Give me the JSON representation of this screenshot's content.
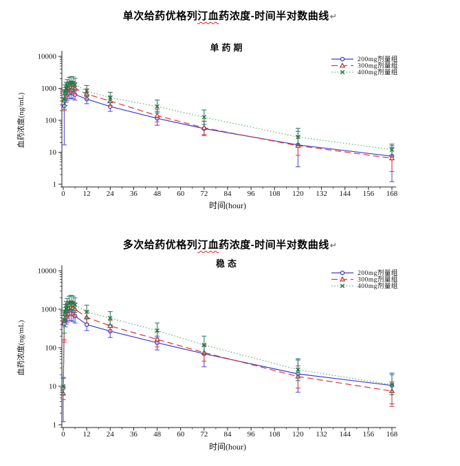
{
  "titles": [
    {
      "prefix": "单次给药优格列",
      "marked": "汀血",
      "suffix": "药浓度-时间半对数曲线",
      "return_mark": "↵"
    },
    {
      "prefix": "多次给药优格列",
      "marked": "汀血",
      "suffix": "药浓度-时间半对数曲线",
      "return_mark": "↵"
    }
  ],
  "chart_data": [
    {
      "type": "line",
      "title": "单药期",
      "xlabel": "时间(hour)",
      "ylabel": "血药浓度(ng/mL)",
      "y_scale": "log",
      "ylim": [
        1,
        10000
      ],
      "y_ticks": [
        1,
        10,
        100,
        1000,
        10000
      ],
      "xlim": [
        0,
        168
      ],
      "x_ticks": [
        0,
        12,
        24,
        36,
        48,
        60,
        72,
        84,
        96,
        108,
        120,
        132,
        144,
        156,
        168
      ],
      "x_minor_step": 6,
      "grid": false,
      "legend_position": "top-right",
      "series": [
        {
          "name": "200mg剂量组",
          "color": "#3a3acc",
          "marker_color": "#3a3acc",
          "err_color": "#5252d8",
          "line": "solid",
          "marker": "circle",
          "x": [
            0.5,
            1,
            1.5,
            2,
            3,
            4,
            5,
            6,
            12,
            24,
            48,
            72,
            120,
            168
          ],
          "y": [
            280,
            470,
            570,
            640,
            700,
            730,
            700,
            640,
            460,
            270,
            115,
            55,
            17,
            7.5
          ],
          "err_lo": [
            17,
            290,
            370,
            420,
            470,
            490,
            470,
            430,
            330,
            190,
            70,
            33,
            3.5,
            1.2
          ],
          "err_hi": [
            820,
            760,
            880,
            950,
            1020,
            1060,
            1020,
            950,
            640,
            380,
            190,
            92,
            45,
            16
          ]
        },
        {
          "name": "300mg剂量组",
          "color": "#dd3333",
          "marker_color": "#cc2222",
          "err_color": "#dd4444",
          "line": "dash",
          "marker": "triangle",
          "x": [
            0.5,
            1,
            1.5,
            2,
            3,
            4,
            5,
            6,
            12,
            24,
            48,
            72,
            120,
            168
          ],
          "y": [
            420,
            700,
            850,
            950,
            1060,
            1120,
            1080,
            1000,
            660,
            400,
            140,
            58,
            16,
            6.5
          ],
          "err_lo": [
            200,
            460,
            560,
            620,
            690,
            730,
            700,
            650,
            450,
            280,
            90,
            36,
            8,
            2.5
          ],
          "err_hi": [
            820,
            1060,
            1280,
            1430,
            1600,
            1690,
            1630,
            1510,
            960,
            570,
            220,
            94,
            32,
            14
          ]
        },
        {
          "name": "400mg剂量组",
          "color": "#5fae6e",
          "marker_color": "#1d7a40",
          "err_color": "#2c7d6a",
          "line": "dot",
          "marker": "x",
          "x": [
            0.5,
            1,
            1.5,
            2,
            3,
            4,
            5,
            6,
            12,
            24,
            48,
            72,
            120,
            168
          ],
          "y": [
            450,
            800,
            1000,
            1200,
            1400,
            1500,
            1450,
            1300,
            830,
            510,
            270,
            125,
            30,
            12
          ],
          "err_lo": [
            220,
            500,
            640,
            760,
            890,
            950,
            920,
            830,
            560,
            350,
            170,
            74,
            16,
            8
          ],
          "err_hi": [
            900,
            1270,
            1560,
            1880,
            2190,
            2350,
            2270,
            2040,
            1230,
            750,
            430,
            210,
            56,
            18
          ]
        }
      ]
    },
    {
      "type": "line",
      "title": "稳态",
      "xlabel": "时间(hour)",
      "ylabel": "血药浓度(ng/mL)",
      "y_scale": "log",
      "ylim": [
        1,
        10000
      ],
      "y_ticks": [
        1,
        10,
        100,
        1000,
        10000
      ],
      "xlim": [
        0,
        168
      ],
      "x_ticks": [
        0,
        12,
        24,
        36,
        48,
        60,
        72,
        84,
        96,
        108,
        120,
        132,
        144,
        156,
        168
      ],
      "x_minor_step": 6,
      "grid": false,
      "legend_position": "top-right",
      "series": [
        {
          "name": "200mg剂量组",
          "color": "#3a3acc",
          "marker_color": "#3a3acc",
          "err_color": "#5252d8",
          "line": "solid",
          "marker": "circle",
          "x": [
            0,
            0.5,
            1,
            1.5,
            2,
            3,
            4,
            5,
            6,
            12,
            24,
            48,
            72,
            120,
            168
          ],
          "y": [
            9,
            420,
            550,
            630,
            700,
            760,
            780,
            740,
            670,
            400,
            270,
            135,
            70,
            21,
            10.5
          ],
          "err_lo": [
            1.2,
            160,
            350,
            410,
            460,
            500,
            510,
            480,
            440,
            280,
            185,
            88,
            32,
            7,
            3.5
          ],
          "err_hi": [
            16,
            700,
            810,
            900,
            960,
            1030,
            1060,
            1010,
            930,
            560,
            380,
            200,
            110,
            48,
            22
          ]
        },
        {
          "name": "300mg剂量组",
          "color": "#dd3333",
          "marker_color": "#cc2222",
          "err_color": "#dd4444",
          "line": "dash",
          "marker": "triangle",
          "x": [
            0,
            0.5,
            1,
            1.5,
            2,
            3,
            4,
            5,
            6,
            12,
            24,
            48,
            72,
            120,
            168
          ],
          "y": [
            6.5,
            500,
            750,
            900,
            1000,
            1090,
            1140,
            1090,
            1000,
            620,
            370,
            165,
            75,
            18,
            7.5
          ],
          "err_lo": [
            4.5,
            140,
            480,
            580,
            640,
            700,
            720,
            700,
            640,
            430,
            260,
            105,
            45,
            9,
            3
          ],
          "err_hi": [
            10,
            860,
            1110,
            1310,
            1450,
            1580,
            1650,
            1580,
            1460,
            890,
            520,
            260,
            122,
            34,
            13
          ]
        },
        {
          "name": "400mg剂量组",
          "color": "#5fae6e",
          "marker_color": "#1d7a40",
          "err_color": "#2c7d6a",
          "line": "dot",
          "marker": "x",
          "x": [
            0,
            0.5,
            1,
            1.5,
            2,
            3,
            4,
            5,
            6,
            12,
            24,
            48,
            72,
            120,
            168
          ],
          "y": [
            10,
            520,
            850,
            1050,
            1250,
            1430,
            1500,
            1430,
            1300,
            860,
            590,
            280,
            118,
            27,
            11
          ],
          "err_lo": [
            6,
            240,
            540,
            680,
            800,
            920,
            960,
            920,
            830,
            580,
            400,
            180,
            70,
            14,
            6
          ],
          "err_hi": [
            17,
            950,
            1330,
            1610,
            1900,
            2180,
            2300,
            2190,
            2000,
            1280,
            870,
            440,
            200,
            52,
            20
          ]
        }
      ]
    }
  ]
}
